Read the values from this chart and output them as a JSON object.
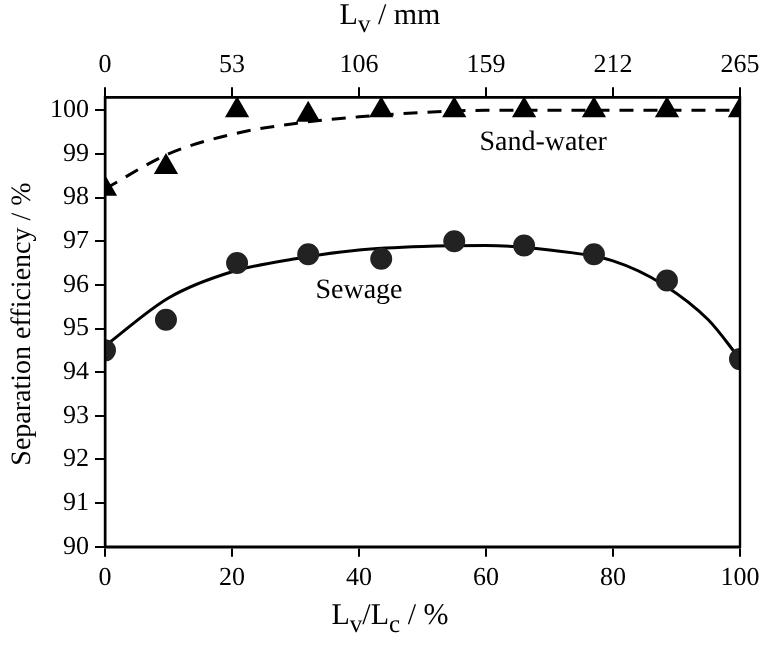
{
  "chart_data": {
    "type": "scatter",
    "xlabel": "L$_{v}$/L$_{c}$ / %",
    "ylabel": "Separation efficiency / %",
    "x2label": "L$_{v}$ / mm",
    "xlim": [
      0,
      100
    ],
    "xticks": [
      0,
      20,
      40,
      60,
      80,
      100
    ],
    "x2lim": [
      0,
      265
    ],
    "x2ticks": [
      0,
      53,
      106,
      159,
      212,
      265
    ],
    "ylim": [
      90,
      100.3
    ],
    "yticks": [
      90,
      91,
      92,
      93,
      94,
      95,
      96,
      97,
      98,
      99,
      100
    ],
    "grid": false,
    "legend": false,
    "annotations": [
      "Sand-water",
      "Sewage"
    ],
    "series": [
      {
        "type": "scatter",
        "marker": "triangle",
        "color": "#000000",
        "x": [
          0,
          9.6,
          20.8,
          32,
          43.5,
          55,
          66,
          77,
          88.5,
          100
        ],
        "values": [
          98.2,
          98.7,
          100.0,
          99.9,
          100.0,
          100.0,
          100.0,
          100.0,
          100.0,
          100.0
        ]
      },
      {
        "type": "scatter",
        "marker": "circle",
        "color": "#222222",
        "x": [
          0,
          9.6,
          20.8,
          32,
          43.5,
          55,
          66,
          77,
          88.5,
          100
        ],
        "values": [
          94.5,
          95.2,
          96.5,
          96.7,
          96.6,
          97.0,
          96.9,
          96.7,
          96.1,
          94.3
        ]
      },
      {
        "type": "line",
        "marker": "none",
        "line_style": "dashed",
        "color": "#000000",
        "x": [
          0,
          10,
          20,
          30,
          40,
          50,
          60,
          70,
          80,
          90,
          100
        ],
        "values": [
          98.2,
          99.0,
          99.45,
          99.7,
          99.85,
          99.95,
          100.0,
          100.0,
          100.0,
          100.0,
          100.0
        ]
      },
      {
        "type": "line",
        "marker": "none",
        "line_style": "solid",
        "color": "#000000",
        "x": [
          0,
          10,
          20,
          30,
          40,
          50,
          60,
          70,
          80,
          88,
          95,
          100
        ],
        "values": [
          94.6,
          95.7,
          96.3,
          96.6,
          96.8,
          96.88,
          96.9,
          96.8,
          96.55,
          96.0,
          95.2,
          94.3
        ]
      }
    ]
  }
}
